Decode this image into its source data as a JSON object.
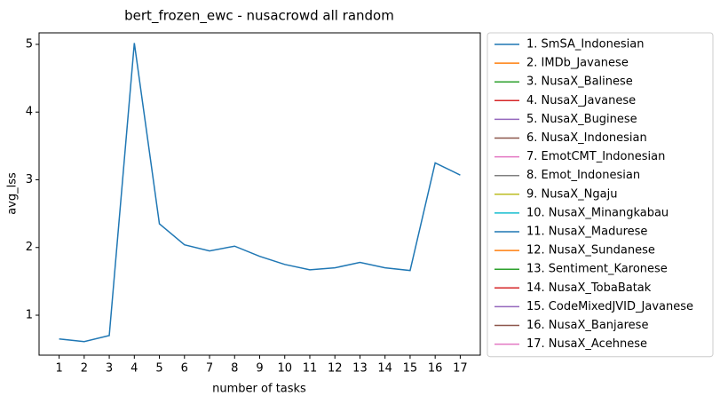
{
  "chart_data": {
    "type": "line",
    "title": "bert_frozen_ewc - nusacrowd all random",
    "xlabel": "number of tasks",
    "ylabel": "avg_lss",
    "x": [
      1,
      2,
      3,
      4,
      5,
      6,
      7,
      8,
      9,
      10,
      11,
      12,
      13,
      14,
      15,
      16,
      17
    ],
    "xlim": [
      0.2,
      17.8
    ],
    "xticks": [
      1,
      2,
      3,
      4,
      5,
      6,
      7,
      8,
      9,
      10,
      11,
      12,
      13,
      14,
      15,
      16,
      17
    ],
    "ylim": [
      0.41,
      5.17
    ],
    "yticks": [
      1,
      2,
      3,
      4,
      5
    ],
    "legend": "outside-right",
    "series": [
      {
        "name": "1. SmSA_Indonesian",
        "color": "#1f77b4",
        "values": [
          0.65,
          0.61,
          0.7,
          5.02,
          2.35,
          2.04,
          1.95,
          2.02,
          1.87,
          1.75,
          1.67,
          1.7,
          1.78,
          1.7,
          1.66,
          3.25,
          3.07
        ]
      },
      {
        "name": "2. IMDb_Javanese",
        "color": "#ff7f0e",
        "values": [
          null,
          null,
          null,
          null,
          null,
          null,
          null,
          null,
          null,
          null,
          null,
          null,
          null,
          null,
          null,
          null,
          null
        ]
      },
      {
        "name": "3. NusaX_Balinese",
        "color": "#2ca02c",
        "values": [
          null,
          null,
          null,
          null,
          null,
          null,
          null,
          null,
          null,
          null,
          null,
          null,
          null,
          null,
          null,
          null,
          null
        ]
      },
      {
        "name": "4. NusaX_Javanese",
        "color": "#d62728",
        "values": [
          null,
          null,
          null,
          null,
          null,
          null,
          null,
          null,
          null,
          null,
          null,
          null,
          null,
          null,
          null,
          null,
          null
        ]
      },
      {
        "name": "5. NusaX_Buginese",
        "color": "#9467bd",
        "values": [
          null,
          null,
          null,
          null,
          null,
          null,
          null,
          null,
          null,
          null,
          null,
          null,
          null,
          null,
          null,
          null,
          null
        ]
      },
      {
        "name": "6. NusaX_Indonesian",
        "color": "#8c564b",
        "values": [
          null,
          null,
          null,
          null,
          null,
          null,
          null,
          null,
          null,
          null,
          null,
          null,
          null,
          null,
          null,
          null,
          null
        ]
      },
      {
        "name": "7. EmotCMT_Indonesian",
        "color": "#e377c2",
        "values": [
          null,
          null,
          null,
          null,
          null,
          null,
          null,
          null,
          null,
          null,
          null,
          null,
          null,
          null,
          null,
          null,
          null
        ]
      },
      {
        "name": "8. Emot_Indonesian",
        "color": "#7f7f7f",
        "values": [
          null,
          null,
          null,
          null,
          null,
          null,
          null,
          null,
          null,
          null,
          null,
          null,
          null,
          null,
          null,
          null,
          null
        ]
      },
      {
        "name": "9. NusaX_Ngaju",
        "color": "#bcbd22",
        "values": [
          null,
          null,
          null,
          null,
          null,
          null,
          null,
          null,
          null,
          null,
          null,
          null,
          null,
          null,
          null,
          null,
          null
        ]
      },
      {
        "name": "10. NusaX_Minangkabau",
        "color": "#17becf",
        "values": [
          null,
          null,
          null,
          null,
          null,
          null,
          null,
          null,
          null,
          null,
          null,
          null,
          null,
          null,
          null,
          null,
          null
        ]
      },
      {
        "name": "11. NusaX_Madurese",
        "color": "#1f77b4",
        "values": [
          null,
          null,
          null,
          null,
          null,
          null,
          null,
          null,
          null,
          null,
          null,
          null,
          null,
          null,
          null,
          null,
          null
        ]
      },
      {
        "name": "12. NusaX_Sundanese",
        "color": "#ff7f0e",
        "values": [
          null,
          null,
          null,
          null,
          null,
          null,
          null,
          null,
          null,
          null,
          null,
          null,
          null,
          null,
          null,
          null,
          null
        ]
      },
      {
        "name": "13. Sentiment_Karonese",
        "color": "#2ca02c",
        "values": [
          null,
          null,
          null,
          null,
          null,
          null,
          null,
          null,
          null,
          null,
          null,
          null,
          null,
          null,
          null,
          null,
          null
        ]
      },
      {
        "name": "14. NusaX_TobaBatak",
        "color": "#d62728",
        "values": [
          null,
          null,
          null,
          null,
          null,
          null,
          null,
          null,
          null,
          null,
          null,
          null,
          null,
          null,
          null,
          null,
          null
        ]
      },
      {
        "name": "15. CodeMixedJVID_Javanese",
        "color": "#9467bd",
        "values": [
          null,
          null,
          null,
          null,
          null,
          null,
          null,
          null,
          null,
          null,
          null,
          null,
          null,
          null,
          null,
          null,
          null
        ]
      },
      {
        "name": "16. NusaX_Banjarese",
        "color": "#8c564b",
        "values": [
          null,
          null,
          null,
          null,
          null,
          null,
          null,
          null,
          null,
          null,
          null,
          null,
          null,
          null,
          null,
          null,
          null
        ]
      },
      {
        "name": "17. NusaX_Acehnese",
        "color": "#e377c2",
        "values": [
          null,
          null,
          null,
          null,
          null,
          null,
          null,
          null,
          null,
          null,
          null,
          null,
          null,
          null,
          null,
          null,
          null
        ]
      }
    ]
  }
}
